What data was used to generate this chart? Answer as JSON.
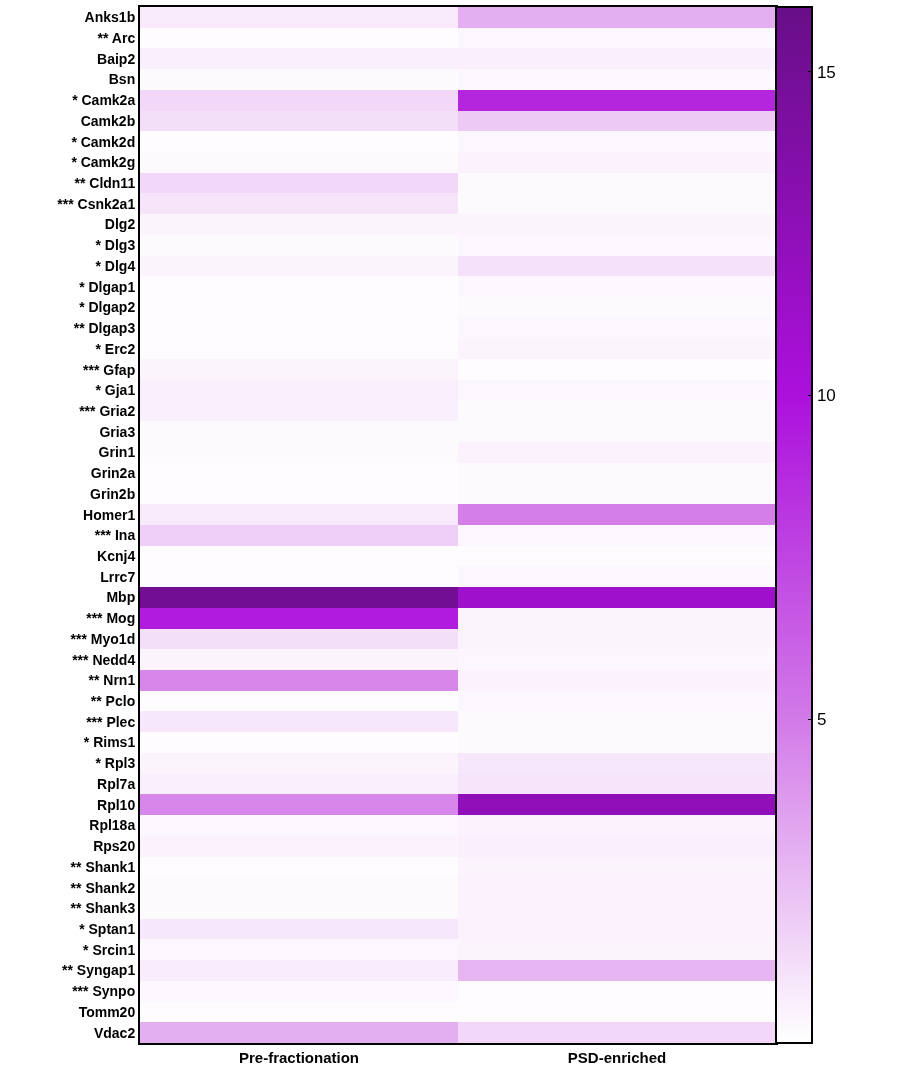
{
  "chart_data": {
    "type": "heatmap",
    "categories": [
      "Pre-fractionation",
      "PSD-enriched"
    ],
    "y_categories": [
      "Anks1b",
      "** Arc",
      "Baip2",
      "Bsn",
      "* Camk2a",
      "Camk2b",
      "* Camk2d",
      "* Camk2g",
      "** Cldn11",
      "*** Csnk2a1",
      "Dlg2",
      "* Dlg3",
      "* Dlg4",
      "* Dlgap1",
      "* Dlgap2",
      "** Dlgap3",
      "* Erc2",
      "*** Gfap",
      "* Gja1",
      "*** Gria2",
      "Gria3",
      "Grin1",
      "Grin2a",
      "Grin2b",
      "Homer1",
      "*** Ina",
      "Kcnj4",
      "Lrrc7",
      "Mbp",
      "*** Mog",
      "*** Myo1d",
      "*** Nedd4",
      "** Nrn1",
      "** Pclo",
      "*** Plec",
      "* Rims1",
      "* Rpl3",
      "Rpl7a",
      "Rpl10",
      "Rpl18a",
      "Rps20",
      "** Shank1",
      "** Shank2",
      "** Shank3",
      "* Sptan1",
      "* Srcin1",
      "** Syngap1",
      "*** Synpo",
      "Tomm20",
      "Vdac2"
    ],
    "cells": [
      [
        0.8,
        3.0
      ],
      [
        0.1,
        0.3
      ],
      [
        0.6,
        0.6
      ],
      [
        0.2,
        0.3
      ],
      [
        1.5,
        9.0
      ],
      [
        1.2,
        2.0
      ],
      [
        0.1,
        0.3
      ],
      [
        0.2,
        0.5
      ],
      [
        1.5,
        0.2
      ],
      [
        1.0,
        0.2
      ],
      [
        0.4,
        0.4
      ],
      [
        0.2,
        0.3
      ],
      [
        0.4,
        1.1
      ],
      [
        0.1,
        0.3
      ],
      [
        0.1,
        0.2
      ],
      [
        0.1,
        0.3
      ],
      [
        0.1,
        0.4
      ],
      [
        0.4,
        0.1
      ],
      [
        0.6,
        0.3
      ],
      [
        0.6,
        0.2
      ],
      [
        0.2,
        0.2
      ],
      [
        0.2,
        0.5
      ],
      [
        0.1,
        0.2
      ],
      [
        0.1,
        0.2
      ],
      [
        0.8,
        4.8
      ],
      [
        1.8,
        0.3
      ],
      [
        0.1,
        0.1
      ],
      [
        0.1,
        0.3
      ],
      [
        15.2,
        11.2
      ],
      [
        9.5,
        0.4
      ],
      [
        1.2,
        0.4
      ],
      [
        0.4,
        0.3
      ],
      [
        4.5,
        0.5
      ],
      [
        0.1,
        0.3
      ],
      [
        0.9,
        0.2
      ],
      [
        0.1,
        0.2
      ],
      [
        0.4,
        0.9
      ],
      [
        0.6,
        1.0
      ],
      [
        4.5,
        12.5
      ],
      [
        0.3,
        0.5
      ],
      [
        0.5,
        0.6
      ],
      [
        0.1,
        0.4
      ],
      [
        0.2,
        0.5
      ],
      [
        0.2,
        0.5
      ],
      [
        0.9,
        0.5
      ],
      [
        0.3,
        0.4
      ],
      [
        0.7,
        2.8
      ],
      [
        0.3,
        0.1
      ],
      [
        0.1,
        0.1
      ],
      [
        3.0,
        1.5
      ]
    ],
    "clim": [
      0,
      16
    ],
    "cticks": [
      5,
      10,
      15
    ]
  }
}
